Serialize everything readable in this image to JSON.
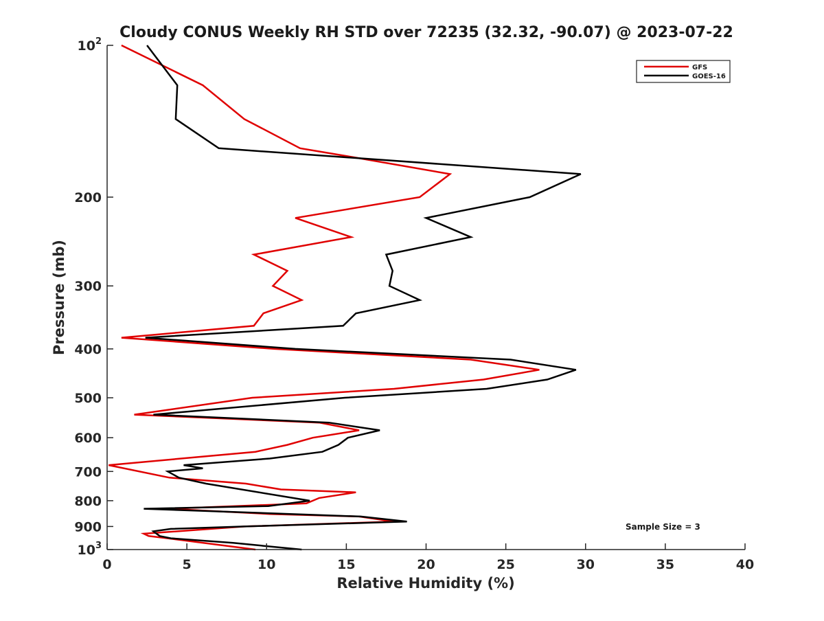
{
  "chart_data": {
    "type": "line",
    "title": "Cloudy CONUS Weekly RH STD over 72235 (32.32, -90.07) @ 2023-07-22",
    "xlabel": "Relative Humidity (%)",
    "ylabel": "Pressure (mb)",
    "xlim": [
      0,
      40
    ],
    "ylim": [
      100,
      1000
    ],
    "yscale": "log",
    "yreversed": true,
    "grid": false,
    "x_ticks": [
      0,
      5,
      10,
      15,
      20,
      25,
      30,
      35,
      40
    ],
    "x_tick_labels": [
      "0",
      "5",
      "10",
      "15",
      "20",
      "25",
      "30",
      "35",
      "40"
    ],
    "y_ticks": [
      100,
      200,
      300,
      400,
      500,
      600,
      700,
      800,
      900,
      1000
    ],
    "y_tick_labels": [
      "10^2",
      "200",
      "300",
      "400",
      "500",
      "600",
      "700",
      "800",
      "900",
      "10^3"
    ],
    "legend": {
      "placement": "top-right",
      "entries": [
        "GFS",
        "GOES-16"
      ]
    },
    "annotation": "Sample Size = 3",
    "series": [
      {
        "name": "GFS",
        "color": "#e00000",
        "points": [
          [
            0.9,
            100
          ],
          [
            6.0,
            120
          ],
          [
            8.6,
            140
          ],
          [
            12.1,
            160
          ],
          [
            15.6,
            167
          ],
          [
            21.5,
            180
          ],
          [
            19.6,
            200
          ],
          [
            11.8,
            220
          ],
          [
            15.3,
            240
          ],
          [
            9.2,
            260
          ],
          [
            11.3,
            280
          ],
          [
            10.4,
            300
          ],
          [
            12.2,
            320
          ],
          [
            9.8,
            340
          ],
          [
            9.2,
            360
          ],
          [
            0.9,
            380
          ],
          [
            10.5,
            400
          ],
          [
            22.8,
            420
          ],
          [
            27.1,
            440
          ],
          [
            23.6,
            460
          ],
          [
            18.0,
            480
          ],
          [
            9.1,
            500
          ],
          [
            1.7,
            540
          ],
          [
            13.3,
            560
          ],
          [
            15.8,
            580
          ],
          [
            12.9,
            600
          ],
          [
            11.3,
            620
          ],
          [
            9.3,
            640
          ],
          [
            0.1,
            680
          ],
          [
            3.9,
            720
          ],
          [
            8.7,
            740
          ],
          [
            10.9,
            760
          ],
          [
            15.6,
            770
          ],
          [
            13.3,
            790
          ],
          [
            12.5,
            810
          ],
          [
            3.8,
            830
          ],
          [
            10.2,
            850
          ],
          [
            15.8,
            860
          ],
          [
            18.0,
            880
          ],
          [
            8.6,
            900
          ],
          [
            2.3,
            930
          ],
          [
            2.6,
            940
          ],
          [
            3.8,
            950
          ],
          [
            9.3,
            1000
          ]
        ]
      },
      {
        "name": "GOES-16",
        "color": "#000000",
        "points": [
          [
            2.5,
            100
          ],
          [
            4.4,
            120
          ],
          [
            4.3,
            140
          ],
          [
            7.0,
            160
          ],
          [
            29.7,
            180
          ],
          [
            26.5,
            200
          ],
          [
            20.0,
            220
          ],
          [
            22.8,
            240
          ],
          [
            17.5,
            260
          ],
          [
            17.9,
            280
          ],
          [
            17.7,
            300
          ],
          [
            19.6,
            320
          ],
          [
            15.6,
            340
          ],
          [
            14.8,
            360
          ],
          [
            2.4,
            380
          ],
          [
            11.8,
            400
          ],
          [
            25.3,
            420
          ],
          [
            29.4,
            440
          ],
          [
            27.6,
            460
          ],
          [
            23.8,
            480
          ],
          [
            14.9,
            500
          ],
          [
            2.9,
            540
          ],
          [
            13.9,
            560
          ],
          [
            17.1,
            580
          ],
          [
            15.1,
            600
          ],
          [
            14.5,
            620
          ],
          [
            13.5,
            640
          ],
          [
            10.2,
            660
          ],
          [
            4.8,
            680
          ],
          [
            6.0,
            690
          ],
          [
            3.8,
            700
          ],
          [
            4.5,
            720
          ],
          [
            6.2,
            740
          ],
          [
            12.7,
            800
          ],
          [
            10.1,
            820
          ],
          [
            2.3,
            830
          ],
          [
            15.9,
            860
          ],
          [
            18.8,
            880
          ],
          [
            8.6,
            900
          ],
          [
            4.0,
            910
          ],
          [
            2.9,
            920
          ],
          [
            3.3,
            940
          ],
          [
            4.0,
            950
          ],
          [
            7.9,
            970
          ],
          [
            12.2,
            1000
          ]
        ]
      }
    ]
  }
}
